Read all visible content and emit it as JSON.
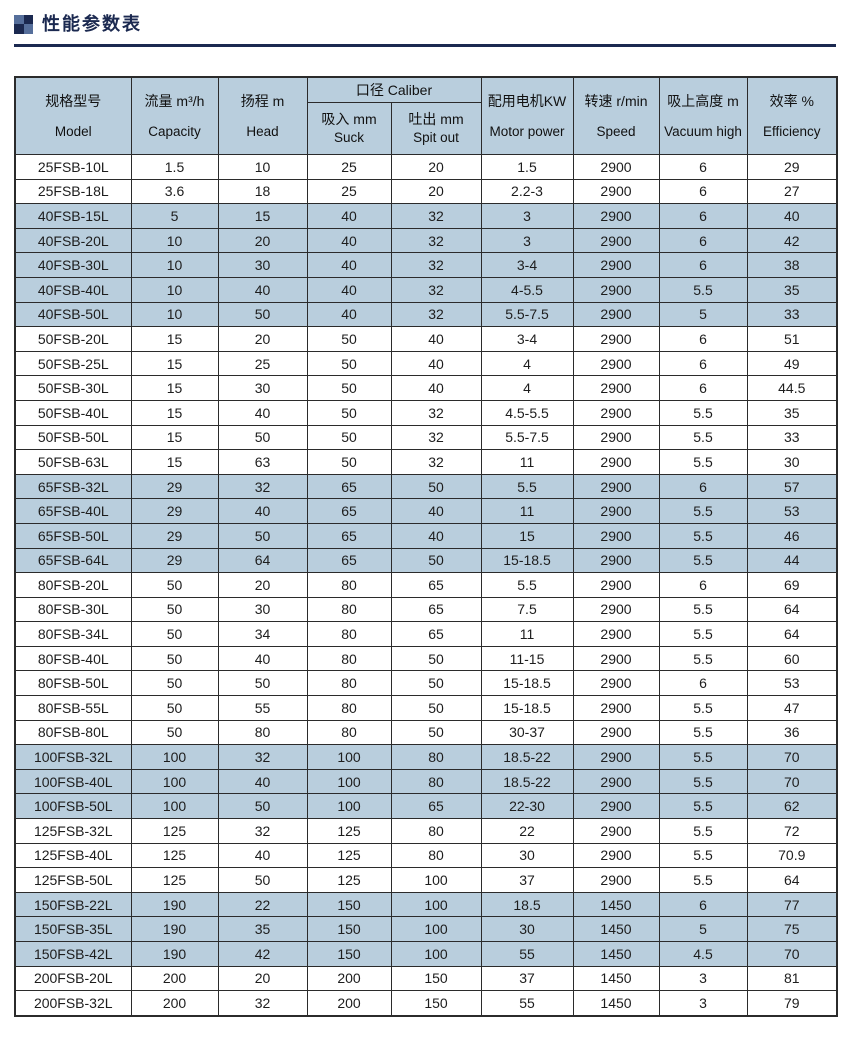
{
  "page": {
    "title": "性能参数表"
  },
  "colors": {
    "accent_navy": "#1b2950",
    "icon_slate": "#566f9b",
    "row_shade_blue": "#b9cedd",
    "table_border": "#2b2b2b"
  },
  "table": {
    "header": {
      "model": {
        "zh": "规格型号",
        "en": "Model"
      },
      "capacity": {
        "zh": "流量 m³/h",
        "en": "Capacity"
      },
      "head": {
        "zh": "扬程 m",
        "en": "Head"
      },
      "caliber": "口径 Caliber",
      "suck": {
        "zh": "吸入 mm",
        "en": "Suck"
      },
      "spit": {
        "zh": "吐出 mm",
        "en": "Spit out"
      },
      "power": {
        "zh": "配用电机KW",
        "en": "Motor power"
      },
      "speed": {
        "zh": "转速 r/min",
        "en": "Speed"
      },
      "vacuum": {
        "zh": "吸上高度 m",
        "en": "Vacuum high"
      },
      "efficiency": {
        "zh": "效率 %",
        "en": "Efficiency"
      }
    },
    "columns_order": [
      "model",
      "capacity",
      "head",
      "suck",
      "spit",
      "power",
      "speed",
      "vacuum",
      "efficiency"
    ],
    "rows": [
      {
        "model": "25FSB-10L",
        "capacity": "1.5",
        "head": "10",
        "suck": "25",
        "spit": "20",
        "power": "1.5",
        "speed": "2900",
        "vacuum": "6",
        "efficiency": "29"
      },
      {
        "model": "25FSB-18L",
        "capacity": "3.6",
        "head": "18",
        "suck": "25",
        "spit": "20",
        "power": "2.2-3",
        "speed": "2900",
        "vacuum": "6",
        "efficiency": "27"
      },
      {
        "model": "40FSB-15L",
        "capacity": "5",
        "head": "15",
        "suck": "40",
        "spit": "32",
        "power": "3",
        "speed": "2900",
        "vacuum": "6",
        "efficiency": "40"
      },
      {
        "model": "40FSB-20L",
        "capacity": "10",
        "head": "20",
        "suck": "40",
        "spit": "32",
        "power": "3",
        "speed": "2900",
        "vacuum": "6",
        "efficiency": "42"
      },
      {
        "model": "40FSB-30L",
        "capacity": "10",
        "head": "30",
        "suck": "40",
        "spit": "32",
        "power": "3-4",
        "speed": "2900",
        "vacuum": "6",
        "efficiency": "38"
      },
      {
        "model": "40FSB-40L",
        "capacity": "10",
        "head": "40",
        "suck": "40",
        "spit": "32",
        "power": "4-5.5",
        "speed": "2900",
        "vacuum": "5.5",
        "efficiency": "35"
      },
      {
        "model": "40FSB-50L",
        "capacity": "10",
        "head": "50",
        "suck": "40",
        "spit": "32",
        "power": "5.5-7.5",
        "speed": "2900",
        "vacuum": "5",
        "efficiency": "33"
      },
      {
        "model": "50FSB-20L",
        "capacity": "15",
        "head": "20",
        "suck": "50",
        "spit": "40",
        "power": "3-4",
        "speed": "2900",
        "vacuum": "6",
        "efficiency": "51"
      },
      {
        "model": "50FSB-25L",
        "capacity": "15",
        "head": "25",
        "suck": "50",
        "spit": "40",
        "power": "4",
        "speed": "2900",
        "vacuum": "6",
        "efficiency": "49"
      },
      {
        "model": "50FSB-30L",
        "capacity": "15",
        "head": "30",
        "suck": "50",
        "spit": "40",
        "power": "4",
        "speed": "2900",
        "vacuum": "6",
        "efficiency": "44.5"
      },
      {
        "model": "50FSB-40L",
        "capacity": "15",
        "head": "40",
        "suck": "50",
        "spit": "32",
        "power": "4.5-5.5",
        "speed": "2900",
        "vacuum": "5.5",
        "efficiency": "35"
      },
      {
        "model": "50FSB-50L",
        "capacity": "15",
        "head": "50",
        "suck": "50",
        "spit": "32",
        "power": "5.5-7.5",
        "speed": "2900",
        "vacuum": "5.5",
        "efficiency": "33"
      },
      {
        "model": "50FSB-63L",
        "capacity": "15",
        "head": "63",
        "suck": "50",
        "spit": "32",
        "power": "11",
        "speed": "2900",
        "vacuum": "5.5",
        "efficiency": "30"
      },
      {
        "model": "65FSB-32L",
        "capacity": "29",
        "head": "32",
        "suck": "65",
        "spit": "50",
        "power": "5.5",
        "speed": "2900",
        "vacuum": "6",
        "efficiency": "57"
      },
      {
        "model": "65FSB-40L",
        "capacity": "29",
        "head": "40",
        "suck": "65",
        "spit": "40",
        "power": "11",
        "speed": "2900",
        "vacuum": "5.5",
        "efficiency": "53"
      },
      {
        "model": "65FSB-50L",
        "capacity": "29",
        "head": "50",
        "suck": "65",
        "spit": "40",
        "power": "15",
        "speed": "2900",
        "vacuum": "5.5",
        "efficiency": "46"
      },
      {
        "model": "65FSB-64L",
        "capacity": "29",
        "head": "64",
        "suck": "65",
        "spit": "50",
        "power": "15-18.5",
        "speed": "2900",
        "vacuum": "5.5",
        "efficiency": "44"
      },
      {
        "model": "80FSB-20L",
        "capacity": "50",
        "head": "20",
        "suck": "80",
        "spit": "65",
        "power": "5.5",
        "speed": "2900",
        "vacuum": "6",
        "efficiency": "69"
      },
      {
        "model": "80FSB-30L",
        "capacity": "50",
        "head": "30",
        "suck": "80",
        "spit": "65",
        "power": "7.5",
        "speed": "2900",
        "vacuum": "5.5",
        "efficiency": "64"
      },
      {
        "model": "80FSB-34L",
        "capacity": "50",
        "head": "34",
        "suck": "80",
        "spit": "65",
        "power": "11",
        "speed": "2900",
        "vacuum": "5.5",
        "efficiency": "64"
      },
      {
        "model": "80FSB-40L",
        "capacity": "50",
        "head": "40",
        "suck": "80",
        "spit": "50",
        "power": "11-15",
        "speed": "2900",
        "vacuum": "5.5",
        "efficiency": "60"
      },
      {
        "model": "80FSB-50L",
        "capacity": "50",
        "head": "50",
        "suck": "80",
        "spit": "50",
        "power": "15-18.5",
        "speed": "2900",
        "vacuum": "6",
        "efficiency": "53"
      },
      {
        "model": "80FSB-55L",
        "capacity": "50",
        "head": "55",
        "suck": "80",
        "spit": "50",
        "power": "15-18.5",
        "speed": "2900",
        "vacuum": "5.5",
        "efficiency": "47"
      },
      {
        "model": "80FSB-80L",
        "capacity": "50",
        "head": "80",
        "suck": "80",
        "spit": "50",
        "power": "30-37",
        "speed": "2900",
        "vacuum": "5.5",
        "efficiency": "36"
      },
      {
        "model": "100FSB-32L",
        "capacity": "100",
        "head": "32",
        "suck": "100",
        "spit": "80",
        "power": "18.5-22",
        "speed": "2900",
        "vacuum": "5.5",
        "efficiency": "70"
      },
      {
        "model": "100FSB-40L",
        "capacity": "100",
        "head": "40",
        "suck": "100",
        "spit": "80",
        "power": "18.5-22",
        "speed": "2900",
        "vacuum": "5.5",
        "efficiency": "70"
      },
      {
        "model": "100FSB-50L",
        "capacity": "100",
        "head": "50",
        "suck": "100",
        "spit": "65",
        "power": "22-30",
        "speed": "2900",
        "vacuum": "5.5",
        "efficiency": "62"
      },
      {
        "model": "125FSB-32L",
        "capacity": "125",
        "head": "32",
        "suck": "125",
        "spit": "80",
        "power": "22",
        "speed": "2900",
        "vacuum": "5.5",
        "efficiency": "72"
      },
      {
        "model": "125FSB-40L",
        "capacity": "125",
        "head": "40",
        "suck": "125",
        "spit": "80",
        "power": "30",
        "speed": "2900",
        "vacuum": "5.5",
        "efficiency": "70.9"
      },
      {
        "model": "125FSB-50L",
        "capacity": "125",
        "head": "50",
        "suck": "125",
        "spit": "100",
        "power": "37",
        "speed": "2900",
        "vacuum": "5.5",
        "efficiency": "64"
      },
      {
        "model": "150FSB-22L",
        "capacity": "190",
        "head": "22",
        "suck": "150",
        "spit": "100",
        "power": "18.5",
        "speed": "1450",
        "vacuum": "6",
        "efficiency": "77"
      },
      {
        "model": "150FSB-35L",
        "capacity": "190",
        "head": "35",
        "suck": "150",
        "spit": "100",
        "power": "30",
        "speed": "1450",
        "vacuum": "5",
        "efficiency": "75"
      },
      {
        "model": "150FSB-42L",
        "capacity": "190",
        "head": "42",
        "suck": "150",
        "spit": "100",
        "power": "55",
        "speed": "1450",
        "vacuum": "4.5",
        "efficiency": "70"
      },
      {
        "model": "200FSB-20L",
        "capacity": "200",
        "head": "20",
        "suck": "200",
        "spit": "150",
        "power": "37",
        "speed": "1450",
        "vacuum": "3",
        "efficiency": "81"
      },
      {
        "model": "200FSB-32L",
        "capacity": "200",
        "head": "32",
        "suck": "200",
        "spit": "150",
        "power": "55",
        "speed": "1450",
        "vacuum": "3",
        "efficiency": "79"
      }
    ]
  }
}
